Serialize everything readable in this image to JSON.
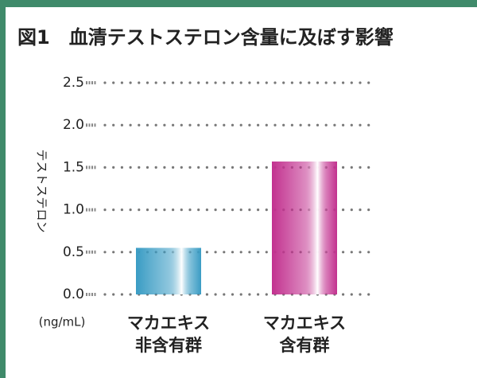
{
  "chart_data": {
    "type": "bar",
    "title": "図1　血清テストステロン含量に及ぼす影響",
    "y_label": "テストステロン",
    "unit_label": "(ng/mL)",
    "categories": [
      [
        "マカエキス",
        "非含有群"
      ],
      [
        "マカエキス",
        "含有群"
      ]
    ],
    "values": [
      0.55,
      1.57
    ],
    "colors": [
      "#3a9cc4",
      "#c2318f"
    ],
    "ylim": [
      0,
      2.5
    ],
    "yticks": [
      {
        "value": 0,
        "label": "0.0"
      },
      0.5,
      {
        "value": 1,
        "label": "1.0"
      },
      1.5,
      {
        "value": 2,
        "label": "2.0"
      },
      2.5
    ],
    "grid": true
  }
}
